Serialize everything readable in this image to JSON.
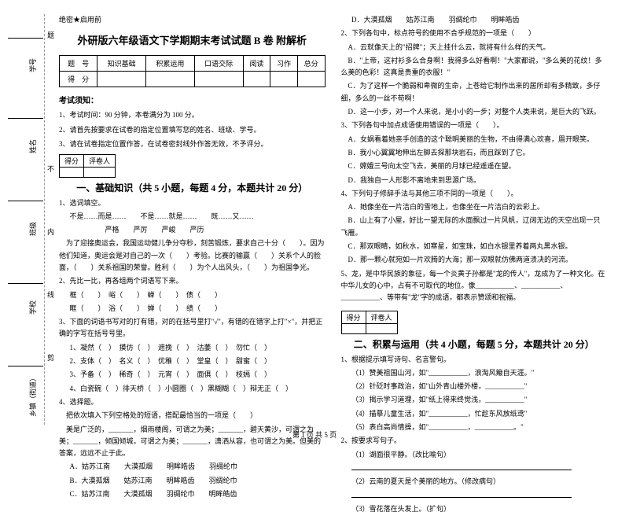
{
  "secret": "绝密★启用前",
  "title": "外研版六年级语文下学期期末考试试题 B 卷 附解析",
  "scoreHeaders": [
    "题　号",
    "知识基础",
    "积累运用",
    "口语交际",
    "阅读",
    "习作",
    "总分"
  ],
  "scoreRow": "得　分",
  "noticeHeader": "考试须知：",
  "notices": [
    "1、考试时间：90 分钟，本卷满分为 100 分。",
    "2、请首先按要求在试卷的指定位置填写您的姓名、班级、学号。",
    "3、请在试卷指定位置作答，在试卷密封线外作答无效，不予评分。"
  ],
  "secBox1": "得分",
  "secBox2": "评卷人",
  "secTitle1": "一、基础知识（共 5 小题，每题 4 分，本题共计 20 分）",
  "secTitle2": "二、积累与运用（共 4 小题，每题 5 分，本题共计 20 分）",
  "q1": "1、选词填空。",
  "q1a": "不是……而是……　　不是……就是……　　既……又……",
  "q1b": "　　　　　严格　　严厉　　严峻　　严历",
  "q1c": "　为了迎接奥运会，我国运动健儿争分夺秒，刻苦锻炼，要求自己十分（　　）。因为他们知道，奥运会是对自己的一次（　　）考验。比赛的输赢（　　）关系个人的脸面，（　　）关系祖国的荣誉。胜利（　　）为个人出风头，（　　）为祖国争光。",
  "q2": "2、先比一比，再各组两个词语写下来。",
  "q2a": "框（　　）　峪（　　）　蝉（　　）　债（　　）",
  "q2b": "眶（　　）　浴（　　）　婵（　　）　绩（　　）",
  "q3": "3、下面的词语书写对的打有错，对的在括号里打\"√\"，有错的在错字上打\"×\"，并把正确的字写在括号号里。",
  "q3a": "1、凝然（　）　摸仿（　）　遮挽（　）　沽萎（　）　勿忙（　）",
  "q3b": "2、支体（　）　名义（　）　优稚（　）　堂皇（　）　甜蜜（　）",
  "q3c": "3、予备（　）　稀奇（　）　元宵（　）　面俱（　）　枝嫣（　）",
  "q3d": "4、白瓷碗（　）徘天桥（　）小圆圈（　）黑糊糊（　）辩无正（　）",
  "q4": "4、选择题。",
  "q4a": "　把依次填入下列空格处的短语，搭配最恰当的一项是（　　）",
  "q4b": "　美是广泛的，_______，烟雨楼阁，可谓之为美；_______，碧天黄沙，可谓之为美；_______，倾国倾城，可谓之为美；_______，潇洒从容，也可谓之为美。但美的答案，远远不止于此。",
  "q4opA": "A．姑苏江南　　大漠孤烟　　明眸皓齿　　羽绸纶巾",
  "q4opB": "B．大漠孤烟　　姑苏江南　　明眸皓齿　　羽绸纶巾",
  "q4opC": "C．姑苏江南　　大漠孤烟　　羽绸纶巾　　明眸皓齿",
  "q4opD": "D．大漠孤烟　　姑苏江南　　羽绸纶巾　　明眸皓齿",
  "r1": "2、下列各句中，标点符号的使用不合乎规范的一项是（　　）",
  "r1a": "　A．云就像天上的\"招牌\"；天上挂什么云，就将有什么样的天气。",
  "r1b": "　B．\"上帝，这衬衫多么合身啊！我得多么好看啊！\"大家都说，\"多么美的花纹！多么美的色彩！这真是贵重的衣服！\"",
  "r1c": "　C．为了这样一个脆弱和卑微的生命，上苍给它制作出来的居所却有多精致，多仔细，多么的一丝不苟啊！",
  "r1d": "　D．这一小步，对一个人来说，是小小的一步；对整个人类来说，是巨大的飞跃。",
  "r2": "3、下列各句中加点成语使用错误的一项是（　　）。",
  "r2a": "　A．女娲看着她亲手创造的这个聪明美丽的生物，不由得满心欢喜，眉开眼笑。",
  "r2b": "　B．我小心翼翼地伸出左脚去探那块岩石，而且踩到了它。",
  "r2c": "　C．嫦娥三号向太空飞去，美丽的月球已经遥遥在望。",
  "r2d": "　D．我独自一人形影不离地来到思源广场。",
  "r3": "4、下列句子修辞手法与其他三项不同的一项是（　　）。",
  "r3a": "　A．她像坐在一片洁白的雪地上，也像坐在一片洁白的云彩上。",
  "r3b": "　B．山上有了小屋，好比一望无际的水面飘过一片风帆，辽阔无边的天空出现一只飞雁。",
  "r3c": "　C．那双眼睛，如秋水，如寒星，如宝珠，如白水银里养着两丸黑水银。",
  "r3d": "　D．那一颗心就宛如一片欢腾的大海；那一双眼就仿佛两道溃决的河流。",
  "r4": "5、龙，是中华民族的象征，每一个炎黄子孙都是\"龙的传人\"，龙成为了一种文化。在中华儿女的心中，占有不可取代的地位。像___________、___________、___________、等带有\"龙\"字的成语，都表示赞颂和祝福。",
  "s1": "1、根据提示填写诗句、名言警句。",
  "s1a": "（1）赞美祖国山河，如\"___________，浪淘风簸自天涯。\"",
  "s1b": "（2）针砭时事政治，如\"山外青山楼外楼，___________\"",
  "s1c": "（3）揭示学习道理，如\"纸上得来终觉浅，___________\"",
  "s1d": "（4）描摹儿童生活，如\"___________，忙趁东风放纸鸢\"",
  "s1e": "（5）表白高尚情操，如\"___________，___________。\"",
  "s2": "2、按要求写句子。",
  "s2a": "（1）湖面很平静。（改比喻句）",
  "s2b": "（2）云南的夏天是个美丽的地方。（修改病句）",
  "s2c": "（3）雪花落在头发上。（扩句）",
  "footer": "第 1 页 共 5 页",
  "labels": {
    "school": "学校",
    "township": "乡镇（街道）",
    "class": "班级",
    "name": "姓名",
    "idnum": "学号",
    "cut": "剪",
    "line": "线",
    "inner": "内",
    "no": "不",
    "ans": "题"
  }
}
